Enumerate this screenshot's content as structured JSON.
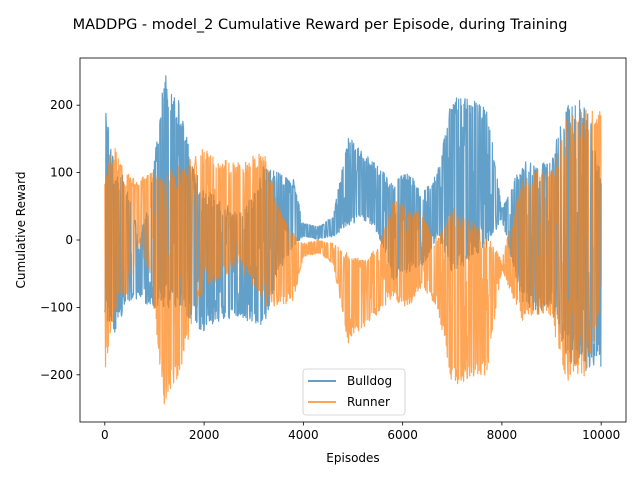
{
  "chart_data": {
    "type": "line",
    "title": "MADDPG - model_2 Cumulative Reward per Episode, during Training",
    "xlabel": "Episodes",
    "ylabel": "Cumulative Reward",
    "xlim": [
      -500,
      10500
    ],
    "ylim": [
      -270,
      270
    ],
    "xticks": [
      0,
      2000,
      4000,
      6000,
      8000,
      10000
    ],
    "yticks": [
      -200,
      -100,
      0,
      100,
      200
    ],
    "xtick_labels": [
      "0",
      "2000",
      "4000",
      "6000",
      "8000",
      "10000"
    ],
    "ytick_labels": [
      "−200",
      "−100",
      "0",
      "100",
      "200"
    ],
    "grid": false,
    "legend_position": "lower center",
    "legend": [
      "Bulldog",
      "Runner"
    ],
    "series": [
      {
        "name": "Bulldog",
        "color": "#1f77b4",
        "opacity": 0.7,
        "envelope": [
          {
            "x": 0,
            "high": 205,
            "low": -115
          },
          {
            "x": 200,
            "high": 105,
            "low": -140
          },
          {
            "x": 400,
            "high": 95,
            "low": -100
          },
          {
            "x": 700,
            "high": 5,
            "low": -85
          },
          {
            "x": 900,
            "high": 60,
            "low": -100
          },
          {
            "x": 1100,
            "high": 180,
            "low": -105
          },
          {
            "x": 1200,
            "high": 248,
            "low": -100
          },
          {
            "x": 1500,
            "high": 205,
            "low": -110
          },
          {
            "x": 1800,
            "high": 110,
            "low": -125
          },
          {
            "x": 2000,
            "high": 80,
            "low": -140
          },
          {
            "x": 2300,
            "high": 60,
            "low": -120
          },
          {
            "x": 2700,
            "high": 40,
            "low": -115
          },
          {
            "x": 3000,
            "high": 70,
            "low": -125
          },
          {
            "x": 3200,
            "high": 110,
            "low": -130
          },
          {
            "x": 3500,
            "high": 100,
            "low": -50
          },
          {
            "x": 3800,
            "high": 90,
            "low": -10
          },
          {
            "x": 4000,
            "high": 25,
            "low": 5
          },
          {
            "x": 4300,
            "high": 20,
            "low": 0
          },
          {
            "x": 4600,
            "high": 35,
            "low": 5
          },
          {
            "x": 4900,
            "high": 155,
            "low": 20
          },
          {
            "x": 5200,
            "high": 130,
            "low": 30
          },
          {
            "x": 5500,
            "high": 110,
            "low": 10
          },
          {
            "x": 5800,
            "high": 85,
            "low": -60
          },
          {
            "x": 6100,
            "high": 105,
            "low": -50
          },
          {
            "x": 6400,
            "high": 70,
            "low": -40
          },
          {
            "x": 6700,
            "high": 100,
            "low": 0
          },
          {
            "x": 7000,
            "high": 215,
            "low": -50
          },
          {
            "x": 7400,
            "high": 210,
            "low": -30
          },
          {
            "x": 7700,
            "high": 200,
            "low": -10
          },
          {
            "x": 8000,
            "high": 45,
            "low": 30
          },
          {
            "x": 8400,
            "high": 120,
            "low": -90
          },
          {
            "x": 8700,
            "high": 110,
            "low": -110
          },
          {
            "x": 9000,
            "high": 120,
            "low": -100
          },
          {
            "x": 9300,
            "high": 210,
            "low": -180
          },
          {
            "x": 9700,
            "high": 210,
            "low": -195
          },
          {
            "x": 10000,
            "high": 100,
            "low": -190
          }
        ]
      },
      {
        "name": "Runner",
        "color": "#ff7f0e",
        "opacity": 0.7,
        "envelope": [
          {
            "x": 0,
            "high": 115,
            "low": -205
          },
          {
            "x": 200,
            "high": 140,
            "low": -105
          },
          {
            "x": 400,
            "high": 100,
            "low": -95
          },
          {
            "x": 700,
            "high": 90,
            "low": -5
          },
          {
            "x": 900,
            "high": 100,
            "low": -60
          },
          {
            "x": 1100,
            "high": 100,
            "low": -180
          },
          {
            "x": 1200,
            "high": 100,
            "low": -248
          },
          {
            "x": 1500,
            "high": 110,
            "low": -205
          },
          {
            "x": 1800,
            "high": 125,
            "low": -110
          },
          {
            "x": 2000,
            "high": 140,
            "low": -80
          },
          {
            "x": 2300,
            "high": 120,
            "low": -60
          },
          {
            "x": 2700,
            "high": 115,
            "low": -40
          },
          {
            "x": 3000,
            "high": 125,
            "low": -70
          },
          {
            "x": 3200,
            "high": 135,
            "low": -100
          },
          {
            "x": 3500,
            "high": 50,
            "low": -100
          },
          {
            "x": 3800,
            "high": 10,
            "low": -90
          },
          {
            "x": 4000,
            "high": -5,
            "low": -25
          },
          {
            "x": 4300,
            "high": 0,
            "low": -20
          },
          {
            "x": 4600,
            "high": -5,
            "low": -35
          },
          {
            "x": 4900,
            "high": -20,
            "low": -155
          },
          {
            "x": 5200,
            "high": -30,
            "low": -130
          },
          {
            "x": 5500,
            "high": -10,
            "low": -110
          },
          {
            "x": 5800,
            "high": 60,
            "low": -85
          },
          {
            "x": 6100,
            "high": 50,
            "low": -105
          },
          {
            "x": 6400,
            "high": 40,
            "low": -70
          },
          {
            "x": 6700,
            "high": 0,
            "low": -100
          },
          {
            "x": 7000,
            "high": 50,
            "low": -215
          },
          {
            "x": 7400,
            "high": 30,
            "low": -210
          },
          {
            "x": 7700,
            "high": 10,
            "low": -200
          },
          {
            "x": 8000,
            "high": -30,
            "low": -45
          },
          {
            "x": 8400,
            "high": 90,
            "low": -120
          },
          {
            "x": 8700,
            "high": 110,
            "low": -110
          },
          {
            "x": 9000,
            "high": 100,
            "low": -120
          },
          {
            "x": 9300,
            "high": 180,
            "low": -210
          },
          {
            "x": 9700,
            "high": 195,
            "low": -210
          },
          {
            "x": 10000,
            "high": 190,
            "low": -100
          }
        ]
      }
    ]
  }
}
